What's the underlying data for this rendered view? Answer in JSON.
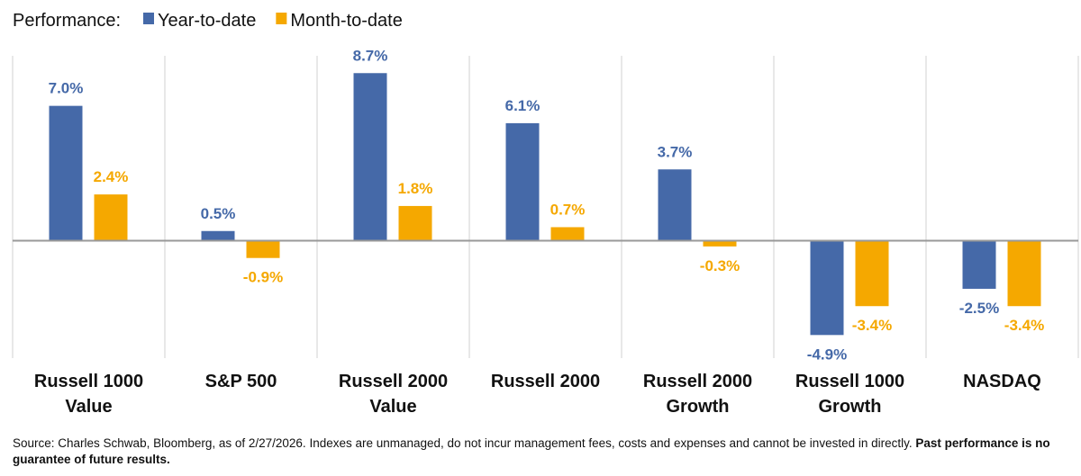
{
  "chart_data": {
    "type": "bar",
    "legend_title": "Performance:",
    "categories": [
      "Russell 1000 Value",
      "S&P 500",
      "Russell 2000 Value",
      "Russell 2000",
      "Russell 2000 Growth",
      "Russell 1000 Growth",
      "NASDAQ"
    ],
    "series": [
      {
        "name": "Year-to-date",
        "color": "#4569a8",
        "values": [
          7.0,
          0.5,
          8.7,
          6.1,
          3.7,
          -4.9,
          -2.5
        ],
        "value_labels": [
          "7.0%",
          "0.5%",
          "8.7%",
          "6.1%",
          "3.7%",
          "-4.9%",
          "-2.5%"
        ]
      },
      {
        "name": "Month-to-date",
        "color": "#f5a800",
        "values": [
          2.4,
          -0.9,
          1.8,
          0.7,
          -0.3,
          -3.4,
          -3.4
        ],
        "value_labels": [
          "2.4%",
          "-0.9%",
          "1.8%",
          "0.7%",
          "-0.3%",
          "-3.4%",
          "-3.4%"
        ]
      }
    ],
    "ylim": [
      -6.1,
      9.6
    ],
    "footnote": {
      "text": "Source: Charles Schwab, Bloomberg, as of 2/27/2026.  Indexes are unmanaged, do not incur management fees, costs and expenses and cannot be invested in directly. ",
      "bold": "Past performance is no guarantee of future results."
    }
  }
}
